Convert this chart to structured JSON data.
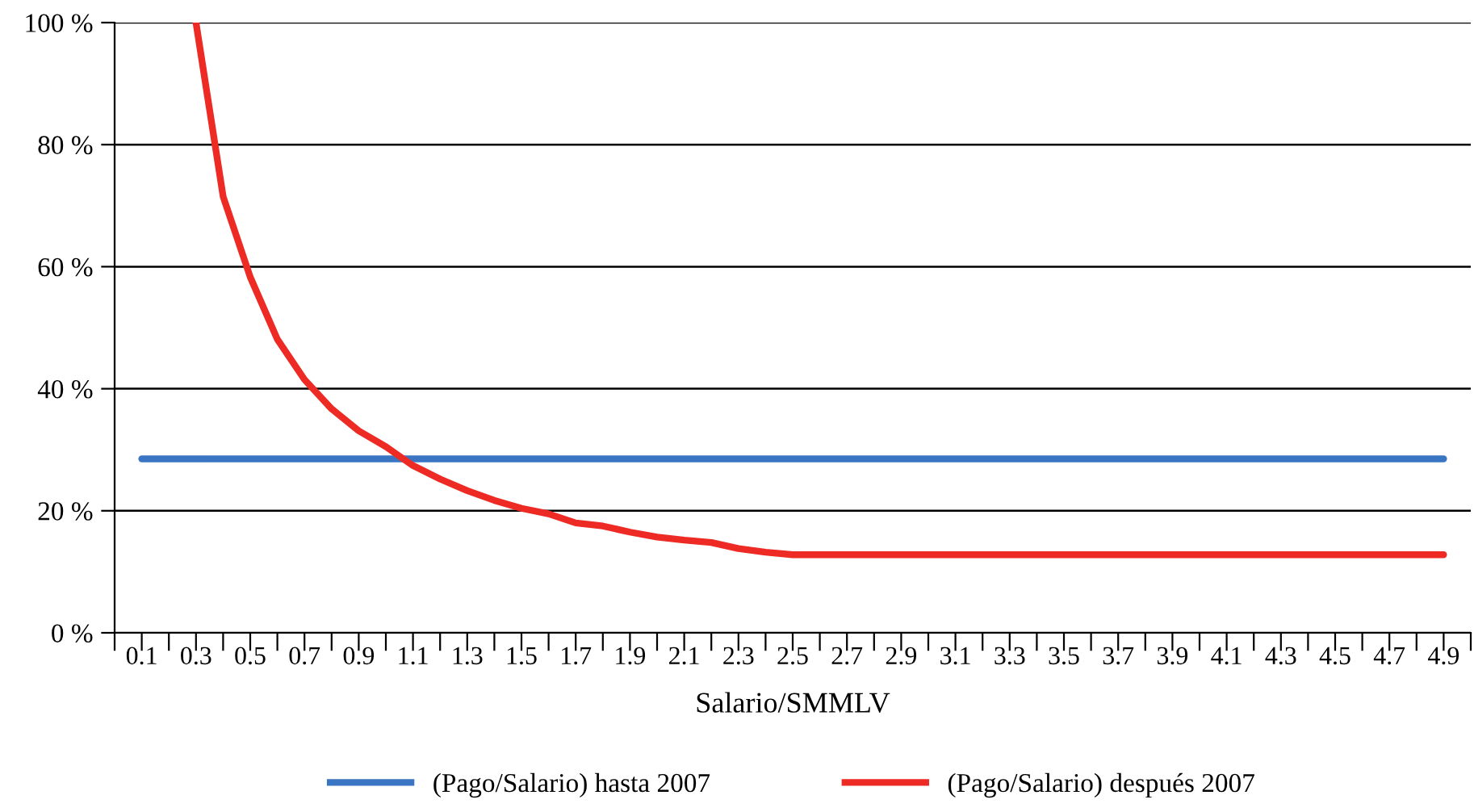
{
  "chart_data": {
    "type": "line",
    "xlabel": "Salario/SMMLV",
    "xlim": [
      0.0,
      5.0
    ],
    "xticks": [
      {
        "value": 0.0,
        "label": null
      },
      {
        "value": 0.1,
        "label": "0.1"
      },
      {
        "value": 0.2,
        "label": null
      },
      {
        "value": 0.3,
        "label": "0.3"
      },
      {
        "value": 0.4,
        "label": null
      },
      {
        "value": 0.5,
        "label": "0.5"
      },
      {
        "value": 0.6,
        "label": null
      },
      {
        "value": 0.7,
        "label": "0.7"
      },
      {
        "value": 0.8,
        "label": null
      },
      {
        "value": 0.9,
        "label": "0.9"
      },
      {
        "value": 1.0,
        "label": null
      },
      {
        "value": 1.1,
        "label": "1.1"
      },
      {
        "value": 1.2,
        "label": null
      },
      {
        "value": 1.3,
        "label": "1.3"
      },
      {
        "value": 1.4,
        "label": null
      },
      {
        "value": 1.5,
        "label": "1.5"
      },
      {
        "value": 1.6,
        "label": null
      },
      {
        "value": 1.7,
        "label": "1.7"
      },
      {
        "value": 1.8,
        "label": null
      },
      {
        "value": 1.9,
        "label": "1.9"
      },
      {
        "value": 2.0,
        "label": null
      },
      {
        "value": 2.1,
        "label": "2.1"
      },
      {
        "value": 2.2,
        "label": null
      },
      {
        "value": 2.3,
        "label": "2.3"
      },
      {
        "value": 2.4,
        "label": null
      },
      {
        "value": 2.5,
        "label": "2.5"
      },
      {
        "value": 2.6,
        "label": null
      },
      {
        "value": 2.7,
        "label": "2.7"
      },
      {
        "value": 2.8,
        "label": null
      },
      {
        "value": 2.9,
        "label": "2.9"
      },
      {
        "value": 3.0,
        "label": null
      },
      {
        "value": 3.1,
        "label": "3.1"
      },
      {
        "value": 3.2,
        "label": null
      },
      {
        "value": 3.3,
        "label": "3.3"
      },
      {
        "value": 3.4,
        "label": null
      },
      {
        "value": 3.5,
        "label": "3.5"
      },
      {
        "value": 3.6,
        "label": null
      },
      {
        "value": 3.7,
        "label": "3.7"
      },
      {
        "value": 3.8,
        "label": null
      },
      {
        "value": 3.9,
        "label": "3.9"
      },
      {
        "value": 4.0,
        "label": null
      },
      {
        "value": 4.1,
        "label": "4.1"
      },
      {
        "value": 4.2,
        "label": null
      },
      {
        "value": 4.3,
        "label": "4.3"
      },
      {
        "value": 4.4,
        "label": null
      },
      {
        "value": 4.5,
        "label": "4.5"
      },
      {
        "value": 4.6,
        "label": null
      },
      {
        "value": 4.7,
        "label": "4.7"
      },
      {
        "value": 4.8,
        "label": null
      },
      {
        "value": 4.9,
        "label": "4.9"
      },
      {
        "value": 5.0,
        "label": null
      }
    ],
    "ylim": [
      0,
      100
    ],
    "yticks": [
      {
        "value": 0,
        "label": "0 %"
      },
      {
        "value": 20,
        "label": "20 %"
      },
      {
        "value": 40,
        "label": "40 %"
      },
      {
        "value": 60,
        "label": "60 %"
      },
      {
        "value": 80,
        "label": "80 %"
      },
      {
        "value": 100,
        "label": "100 %"
      }
    ],
    "grid": "y",
    "legend": "bottom",
    "marker": "none",
    "line_style": "solid",
    "series": [
      {
        "name": "(Pago/Salario) hasta 2007",
        "color": "#3a75c4",
        "x": [
          0.1,
          4.9
        ],
        "values": [
          28.5,
          28.5
        ]
      },
      {
        "name": "(Pago/Salario) después 2007",
        "color": "#ee2a24",
        "x": [
          0.3,
          0.4,
          0.5,
          0.6,
          0.7,
          0.8,
          0.9,
          1.0,
          1.1,
          1.2,
          1.3,
          1.4,
          1.5,
          1.6,
          1.7,
          1.8,
          1.9,
          2.0,
          2.1,
          2.2,
          2.3,
          2.4,
          2.5,
          4.9
        ],
        "values": [
          100,
          71.5,
          58.3,
          48.1,
          41.5,
          36.7,
          33.1,
          30.5,
          27.4,
          25.2,
          23.3,
          21.7,
          20.4,
          19.5,
          18.0,
          17.5,
          16.5,
          15.7,
          15.2,
          14.8,
          13.8,
          13.2,
          12.8,
          12.8
        ]
      }
    ]
  }
}
